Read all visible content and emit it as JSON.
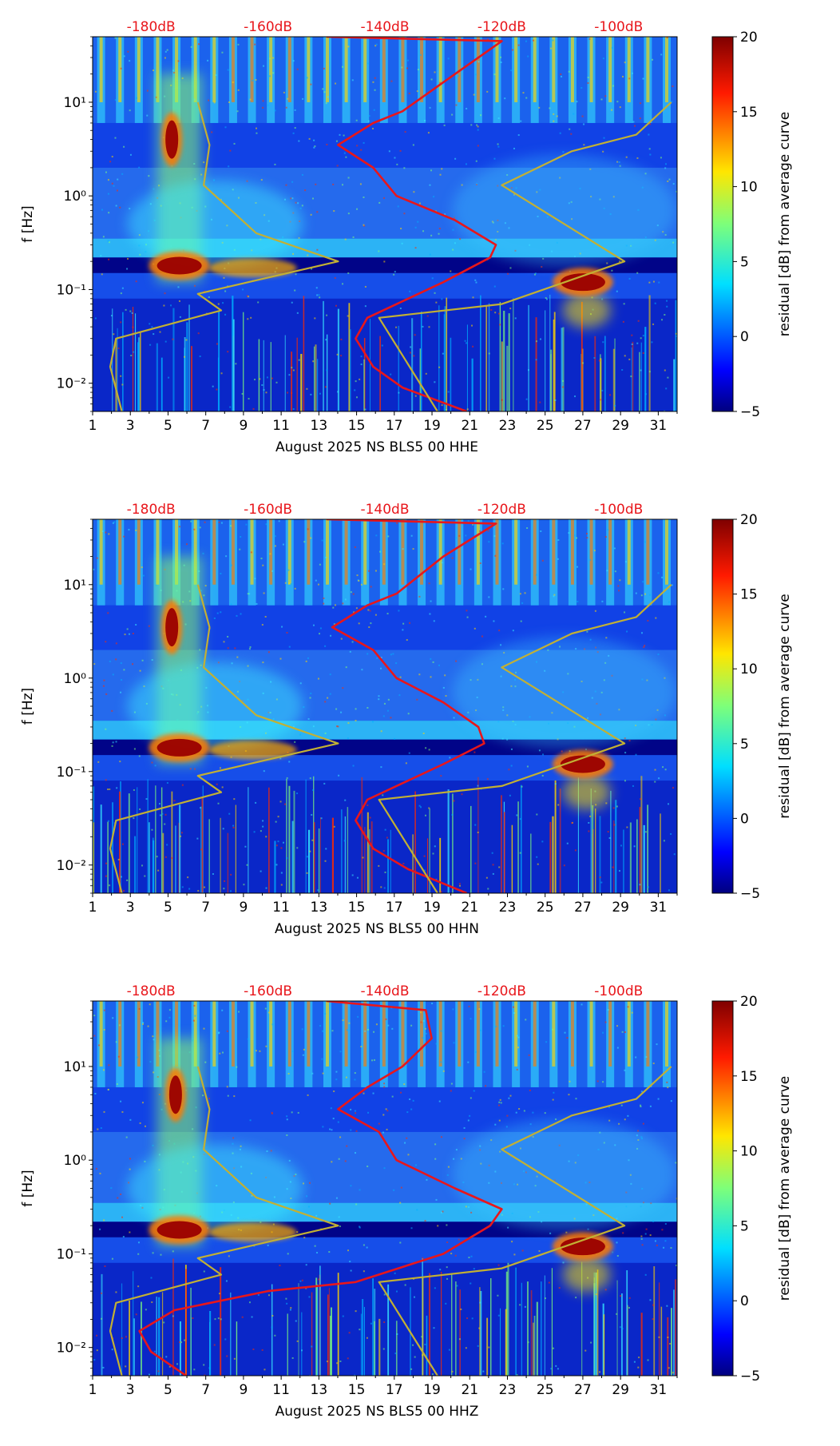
{
  "chart_data": [
    {
      "type": "heatmap",
      "xlabel": "August 2025 NS BLS5 00 HHE",
      "ylabel": "f [Hz]",
      "x_ticks": [
        "1",
        "3",
        "5",
        "7",
        "9",
        "11",
        "13",
        "15",
        "17",
        "19",
        "21",
        "23",
        "25",
        "27",
        "29",
        "31"
      ],
      "y_ticks": [
        "10⁻²",
        "10⁻¹",
        "10⁰",
        "10¹"
      ],
      "xlim": [
        1,
        32
      ],
      "ylim_hz": [
        0.005,
        50
      ],
      "top_db_ticks": [
        "-180dB",
        "-160dB",
        "-140dB",
        "-120dB",
        "-100dB"
      ],
      "top_db_range": [
        -190,
        -90
      ],
      "colorbar": {
        "label": "residual [dB] from average curve",
        "ticks": [
          "20",
          "15",
          "10",
          "5",
          "0",
          "−5"
        ],
        "range": [
          -5,
          20
        ]
      },
      "hotspots": [
        {
          "day": 5.6,
          "freq_hz": 0.18,
          "residual_db": 20
        },
        {
          "day": 27.0,
          "freq_hz": 0.12,
          "residual_db": 20
        },
        {
          "day": 5.2,
          "freq_hz": 4.0,
          "residual_db": 17
        }
      ],
      "series": [
        {
          "name": "median PSD (dB)",
          "color": "#e8161b",
          "points": [
            [
              -126,
              0.005
            ],
            [
              -137,
              0.009
            ],
            [
              -142,
              0.015
            ],
            [
              -145,
              0.03
            ],
            [
              -143,
              0.05
            ],
            [
              -130,
              0.12
            ],
            [
              -122,
              0.22
            ],
            [
              -121,
              0.3
            ],
            [
              -128,
              0.55
            ],
            [
              -138,
              1.0
            ],
            [
              -142,
              2.0
            ],
            [
              -148,
              3.5
            ],
            [
              -142,
              6.0
            ],
            [
              -137,
              8.0
            ],
            [
              -128,
              20.0
            ],
            [
              -120,
              45.0
            ],
            [
              -150,
              50.0
            ]
          ]
        },
        {
          "name": "low noise model (dB)",
          "color": "#c2b034",
          "points": [
            [
              -185,
              0.005
            ],
            [
              -187,
              0.015
            ],
            [
              -186,
              0.03
            ],
            [
              -168,
              0.06
            ],
            [
              -172,
              0.09
            ],
            [
              -148,
              0.2
            ],
            [
              -162,
              0.4
            ],
            [
              -171,
              1.3
            ],
            [
              -170,
              3.5
            ],
            [
              -172,
              10.0
            ]
          ]
        },
        {
          "name": "high noise model (dB)",
          "color": "#c2b034",
          "points": [
            [
              -131,
              0.005
            ],
            [
              -141,
              0.05
            ],
            [
              -120,
              0.07
            ],
            [
              -99,
              0.2
            ],
            [
              -120,
              1.3
            ],
            [
              -108,
              3.0
            ],
            [
              -97,
              4.5
            ],
            [
              -91,
              10.0
            ]
          ]
        }
      ]
    },
    {
      "type": "heatmap",
      "xlabel": "August 2025 NS BLS5 00 HHN",
      "ylabel": "f [Hz]",
      "x_ticks": [
        "1",
        "3",
        "5",
        "7",
        "9",
        "11",
        "13",
        "15",
        "17",
        "19",
        "21",
        "23",
        "25",
        "27",
        "29",
        "31"
      ],
      "y_ticks": [
        "10⁻²",
        "10⁻¹",
        "10⁰",
        "10¹"
      ],
      "xlim": [
        1,
        32
      ],
      "ylim_hz": [
        0.005,
        50
      ],
      "top_db_ticks": [
        "-180dB",
        "-160dB",
        "-140dB",
        "-120dB",
        "-100dB"
      ],
      "top_db_range": [
        -190,
        -90
      ],
      "colorbar": {
        "label": "residual [dB] from average curve",
        "ticks": [
          "20",
          "15",
          "10",
          "5",
          "0",
          "−5"
        ],
        "range": [
          -5,
          20
        ]
      },
      "hotspots": [
        {
          "day": 5.6,
          "freq_hz": 0.18,
          "residual_db": 20
        },
        {
          "day": 27.0,
          "freq_hz": 0.12,
          "residual_db": 20
        },
        {
          "day": 5.2,
          "freq_hz": 3.5,
          "residual_db": 17
        }
      ],
      "series": [
        {
          "name": "median PSD (dB)",
          "color": "#e8161b",
          "points": [
            [
              -126,
              0.005
            ],
            [
              -136,
              0.009
            ],
            [
              -142,
              0.015
            ],
            [
              -145,
              0.03
            ],
            [
              -143,
              0.05
            ],
            [
              -130,
              0.12
            ],
            [
              -123,
              0.2
            ],
            [
              -124,
              0.3
            ],
            [
              -130,
              0.55
            ],
            [
              -138,
              1.0
            ],
            [
              -142,
              2.0
            ],
            [
              -149,
              3.5
            ],
            [
              -143,
              6.0
            ],
            [
              -138,
              8.0
            ],
            [
              -130,
              20.0
            ],
            [
              -121,
              45.0
            ],
            [
              -150,
              50.0
            ]
          ]
        },
        {
          "name": "low noise model (dB)",
          "color": "#c2b034",
          "points": [
            [
              -185,
              0.005
            ],
            [
              -187,
              0.015
            ],
            [
              -186,
              0.03
            ],
            [
              -168,
              0.06
            ],
            [
              -172,
              0.09
            ],
            [
              -148,
              0.2
            ],
            [
              -162,
              0.4
            ],
            [
              -171,
              1.3
            ],
            [
              -170,
              3.5
            ],
            [
              -172,
              10.0
            ]
          ]
        },
        {
          "name": "high noise model (dB)",
          "color": "#c2b034",
          "points": [
            [
              -131,
              0.005
            ],
            [
              -141,
              0.05
            ],
            [
              -120,
              0.07
            ],
            [
              -99,
              0.2
            ],
            [
              -120,
              1.3
            ],
            [
              -108,
              3.0
            ],
            [
              -97,
              4.5
            ],
            [
              -91,
              10.0
            ]
          ]
        }
      ]
    },
    {
      "type": "heatmap",
      "xlabel": "August 2025 NS BLS5 00 HHZ",
      "ylabel": "f [Hz]",
      "x_ticks": [
        "1",
        "3",
        "5",
        "7",
        "9",
        "11",
        "13",
        "15",
        "17",
        "19",
        "21",
        "23",
        "25",
        "27",
        "29",
        "31"
      ],
      "y_ticks": [
        "10⁻²",
        "10⁻¹",
        "10⁰",
        "10¹"
      ],
      "xlim": [
        1,
        32
      ],
      "ylim_hz": [
        0.005,
        50
      ],
      "top_db_ticks": [
        "-180dB",
        "-160dB",
        "-140dB",
        "-120dB",
        "-100dB"
      ],
      "top_db_range": [
        -190,
        -90
      ],
      "colorbar": {
        "label": "residual [dB] from average curve",
        "ticks": [
          "20",
          "15",
          "10",
          "5",
          "0",
          "−5"
        ],
        "range": [
          -5,
          20
        ]
      },
      "hotspots": [
        {
          "day": 5.6,
          "freq_hz": 0.18,
          "residual_db": 20
        },
        {
          "day": 27.0,
          "freq_hz": 0.12,
          "residual_db": 20
        },
        {
          "day": 5.4,
          "freq_hz": 5.0,
          "residual_db": 15
        }
      ],
      "series": [
        {
          "name": "median PSD (dB)",
          "color": "#e8161b",
          "points": [
            [
              -174,
              0.005
            ],
            [
              -180,
              0.009
            ],
            [
              -182,
              0.015
            ],
            [
              -176,
              0.025
            ],
            [
              -160,
              0.04
            ],
            [
              -145,
              0.05
            ],
            [
              -130,
              0.1
            ],
            [
              -122,
              0.2
            ],
            [
              -120,
              0.3
            ],
            [
              -128,
              0.5
            ],
            [
              -138,
              1.0
            ],
            [
              -141,
              2.0
            ],
            [
              -148,
              3.5
            ],
            [
              -143,
              6.0
            ],
            [
              -137,
              10.0
            ],
            [
              -132,
              20.0
            ],
            [
              -133,
              40.0
            ],
            [
              -150,
              50.0
            ]
          ]
        },
        {
          "name": "low noise model (dB)",
          "color": "#c2b034",
          "points": [
            [
              -185,
              0.005
            ],
            [
              -187,
              0.015
            ],
            [
              -186,
              0.03
            ],
            [
              -168,
              0.06
            ],
            [
              -172,
              0.09
            ],
            [
              -148,
              0.2
            ],
            [
              -162,
              0.4
            ],
            [
              -171,
              1.3
            ],
            [
              -170,
              3.5
            ],
            [
              -172,
              10.0
            ]
          ]
        },
        {
          "name": "high noise model (dB)",
          "color": "#c2b034",
          "points": [
            [
              -131,
              0.005
            ],
            [
              -141,
              0.05
            ],
            [
              -120,
              0.07
            ],
            [
              -99,
              0.2
            ],
            [
              -120,
              1.3
            ],
            [
              -108,
              3.0
            ],
            [
              -97,
              4.5
            ],
            [
              -91,
              10.0
            ]
          ]
        }
      ]
    }
  ]
}
